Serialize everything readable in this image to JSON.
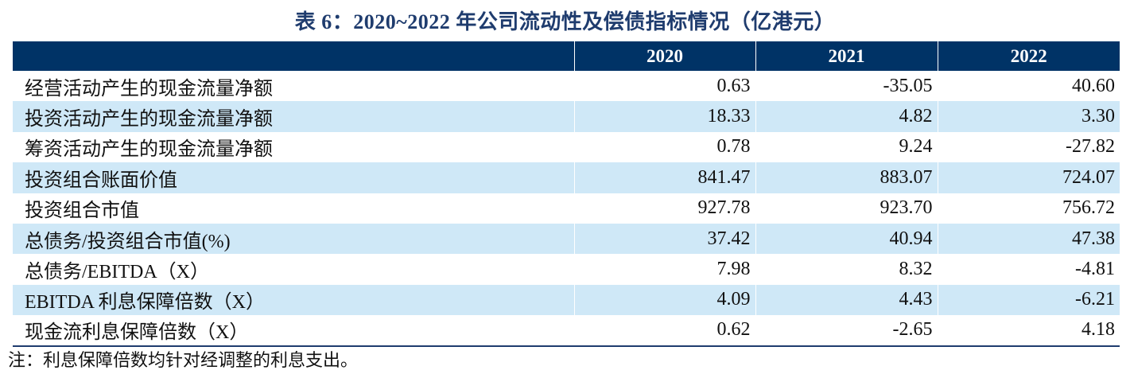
{
  "title": "表 6：2020~2022 年公司流动性及偿债指标情况（亿港元）",
  "table": {
    "headers": [
      "",
      "2020",
      "2021",
      "2022"
    ],
    "rows": [
      {
        "label": "经营活动产生的现金流量净额",
        "values": [
          "0.63",
          "-35.05",
          "40.60"
        ]
      },
      {
        "label": "投资活动产生的现金流量净额",
        "values": [
          "18.33",
          "4.82",
          "3.30"
        ]
      },
      {
        "label": "筹资活动产生的现金流量净额",
        "values": [
          "0.78",
          "9.24",
          "-27.82"
        ]
      },
      {
        "label": "投资组合账面价值",
        "values": [
          "841.47",
          "883.07",
          "724.07"
        ]
      },
      {
        "label": "投资组合市值",
        "values": [
          "927.78",
          "923.70",
          "756.72"
        ]
      },
      {
        "label": "总债务/投资组合市值(%)",
        "values": [
          "37.42",
          "40.94",
          "47.38"
        ]
      },
      {
        "label": "总债务/EBITDA（X）",
        "values": [
          "7.98",
          "8.32",
          "-4.81"
        ]
      },
      {
        "label": "EBITDA 利息保障倍数（X）",
        "values": [
          "4.09",
          "4.43",
          "-6.21"
        ]
      },
      {
        "label": "现金流利息保障倍数（X）",
        "values": [
          "0.62",
          "-2.65",
          "4.18"
        ]
      }
    ]
  },
  "note": "注：利息保障倍数均针对经调整的利息支出。",
  "colors": {
    "header_bg": "#003366",
    "title": "#1f3c6e",
    "alt_row": "#cfe8f7"
  }
}
